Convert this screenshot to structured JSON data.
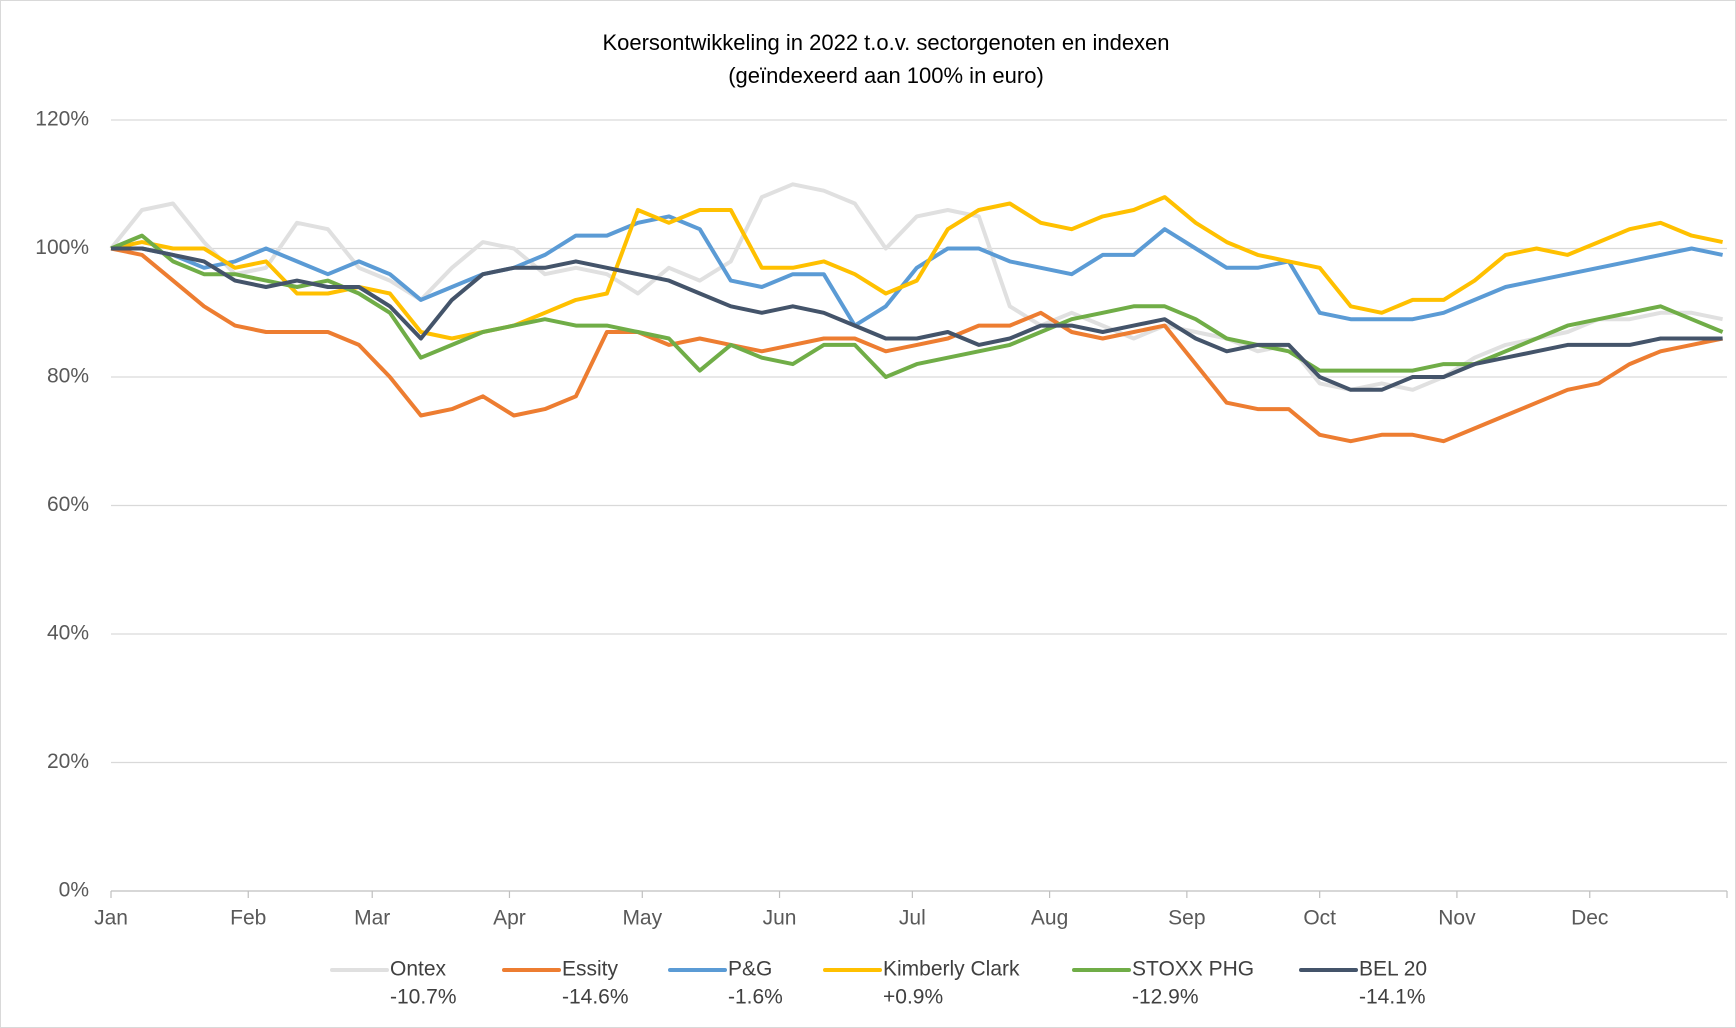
{
  "chart_data": {
    "type": "line",
    "title": "Koersontwikkeling in 2022 t.o.v. sectorgenoten en indexen",
    "subtitle": "(geïndexeerd aan 100% in euro)",
    "x": [
      0,
      7,
      14,
      21,
      28,
      35,
      42,
      49,
      56,
      63,
      70,
      77,
      84,
      91,
      98,
      105,
      112,
      119,
      126,
      133,
      140,
      147,
      154,
      161,
      168,
      175,
      182,
      189,
      196,
      203,
      210,
      217,
      224,
      231,
      238,
      245,
      252,
      259,
      266,
      273,
      280,
      287,
      294,
      301,
      308,
      315,
      322,
      329,
      336,
      343,
      350,
      357,
      364
    ],
    "xlim": [
      0,
      365
    ],
    "xticks": [
      {
        "value": 0,
        "label": "Jan"
      },
      {
        "value": 31,
        "label": "Feb"
      },
      {
        "value": 59,
        "label": "Mar"
      },
      {
        "value": 90,
        "label": "Apr"
      },
      {
        "value": 120,
        "label": "May"
      },
      {
        "value": 151,
        "label": "Jun"
      },
      {
        "value": 181,
        "label": "Jul"
      },
      {
        "value": 212,
        "label": "Aug"
      },
      {
        "value": 243,
        "label": "Sep"
      },
      {
        "value": 273,
        "label": "Oct"
      },
      {
        "value": 304,
        "label": "Nov"
      },
      {
        "value": 334,
        "label": "Dec"
      }
    ],
    "ylim": [
      0,
      120
    ],
    "yticks": [
      {
        "value": 0,
        "label": "0%"
      },
      {
        "value": 20,
        "label": "20%"
      },
      {
        "value": 40,
        "label": "40%"
      },
      {
        "value": 60,
        "label": "60%"
      },
      {
        "value": 80,
        "label": "80%"
      },
      {
        "value": 100,
        "label": "100%"
      },
      {
        "value": 120,
        "label": "120%"
      }
    ],
    "grid": true,
    "legend": "bottom",
    "series": [
      {
        "name": "Ontex",
        "change": "-10.7%",
        "color": "#e0e0e0",
        "values": [
          100,
          106,
          107,
          101,
          96,
          97,
          104,
          103,
          97,
          95,
          92,
          97,
          101,
          100,
          96,
          97,
          96,
          93,
          97,
          95,
          98,
          108,
          110,
          109,
          107,
          100,
          105,
          106,
          105,
          91,
          88,
          90,
          88,
          86,
          88,
          87,
          86,
          84,
          85,
          79,
          78,
          79,
          78,
          80,
          83,
          85,
          86,
          87,
          89,
          89,
          90,
          90,
          89
        ]
      },
      {
        "name": "Essity",
        "change": "-14.6%",
        "color": "#ed7d31",
        "values": [
          100,
          99,
          95,
          91,
          88,
          87,
          87,
          87,
          85,
          80,
          74,
          75,
          77,
          74,
          75,
          77,
          87,
          87,
          85,
          86,
          85,
          84,
          85,
          86,
          86,
          84,
          85,
          86,
          88,
          88,
          90,
          87,
          86,
          87,
          88,
          82,
          76,
          75,
          75,
          71,
          70,
          71,
          71,
          70,
          72,
          74,
          76,
          78,
          79,
          82,
          84,
          85,
          86
        ]
      },
      {
        "name": "P&G",
        "change": "-1.6%",
        "color": "#5b9bd5",
        "values": [
          100,
          100,
          99,
          97,
          98,
          100,
          98,
          96,
          98,
          96,
          92,
          94,
          96,
          97,
          99,
          102,
          102,
          104,
          105,
          103,
          95,
          94,
          96,
          96,
          88,
          91,
          97,
          100,
          100,
          98,
          97,
          96,
          99,
          99,
          103,
          100,
          97,
          97,
          98,
          90,
          89,
          89,
          89,
          90,
          92,
          94,
          95,
          96,
          97,
          98,
          99,
          100,
          99
        ]
      },
      {
        "name": "Kimberly Clark",
        "change": "+0.9%",
        "color": "#ffc000",
        "values": [
          100,
          101,
          100,
          100,
          97,
          98,
          93,
          93,
          94,
          93,
          87,
          86,
          87,
          88,
          90,
          92,
          93,
          106,
          104,
          106,
          106,
          97,
          97,
          98,
          96,
          93,
          95,
          103,
          106,
          107,
          104,
          103,
          105,
          106,
          108,
          104,
          101,
          99,
          98,
          97,
          91,
          90,
          92,
          92,
          95,
          99,
          100,
          99,
          101,
          103,
          104,
          102,
          101
        ]
      },
      {
        "name": "STOXX PHG",
        "change": "-12.9%",
        "color": "#70ad47",
        "values": [
          100,
          102,
          98,
          96,
          96,
          95,
          94,
          95,
          93,
          90,
          83,
          85,
          87,
          88,
          89,
          88,
          88,
          87,
          86,
          81,
          85,
          83,
          82,
          85,
          85,
          80,
          82,
          83,
          84,
          85,
          87,
          89,
          90,
          91,
          91,
          89,
          86,
          85,
          84,
          81,
          81,
          81,
          81,
          82,
          82,
          84,
          86,
          88,
          89,
          90,
          91,
          89,
          87
        ]
      },
      {
        "name": "BEL 20",
        "change": "-14.1%",
        "color": "#44546a",
        "values": [
          100,
          100,
          99,
          98,
          95,
          94,
          95,
          94,
          94,
          91,
          86,
          92,
          96,
          97,
          97,
          98,
          97,
          96,
          95,
          93,
          91,
          90,
          91,
          90,
          88,
          86,
          86,
          87,
          85,
          86,
          88,
          88,
          87,
          88,
          89,
          86,
          84,
          85,
          85,
          80,
          78,
          78,
          80,
          80,
          82,
          83,
          84,
          85,
          85,
          85,
          86,
          86,
          86
        ]
      }
    ]
  }
}
